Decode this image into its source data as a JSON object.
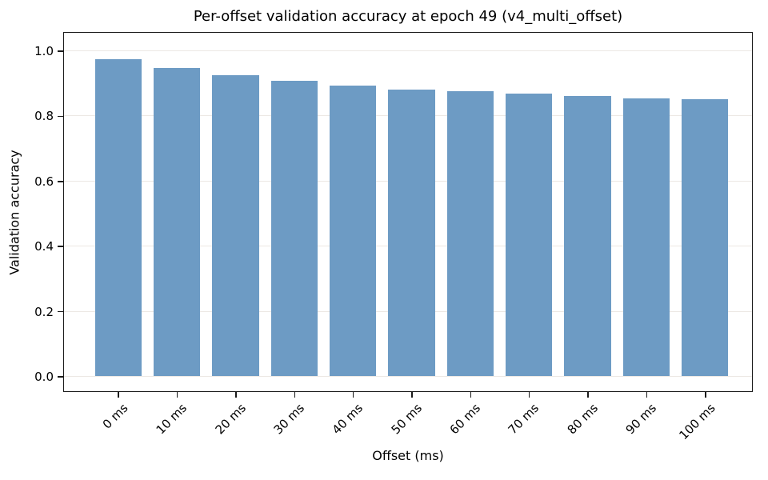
{
  "chart_data": {
    "type": "bar",
    "title": "Per-offset validation accuracy at epoch 49 (v4_multi_offset)",
    "xlabel": "Offset (ms)",
    "ylabel": "Validation accuracy",
    "categories": [
      "0 ms",
      "10 ms",
      "20 ms",
      "30 ms",
      "40 ms",
      "50 ms",
      "60 ms",
      "70 ms",
      "80 ms",
      "90 ms",
      "100 ms"
    ],
    "values": [
      0.973,
      0.948,
      0.926,
      0.908,
      0.893,
      0.881,
      0.876,
      0.869,
      0.86,
      0.855,
      0.852
    ],
    "yticks": [
      0.0,
      0.2,
      0.4,
      0.6,
      0.8,
      1.0
    ],
    "ytick_labels": [
      "0.0",
      "0.2",
      "0.4",
      "0.6",
      "0.8",
      "1.0"
    ],
    "ylim": [
      -0.05,
      1.06
    ],
    "xtick_rotation": 45,
    "grid": "horizontal",
    "bar_color": "#6d9bc4",
    "grid_color": "#ece8e4",
    "text_color": "#000000",
    "background_color": "#ffffff"
  }
}
